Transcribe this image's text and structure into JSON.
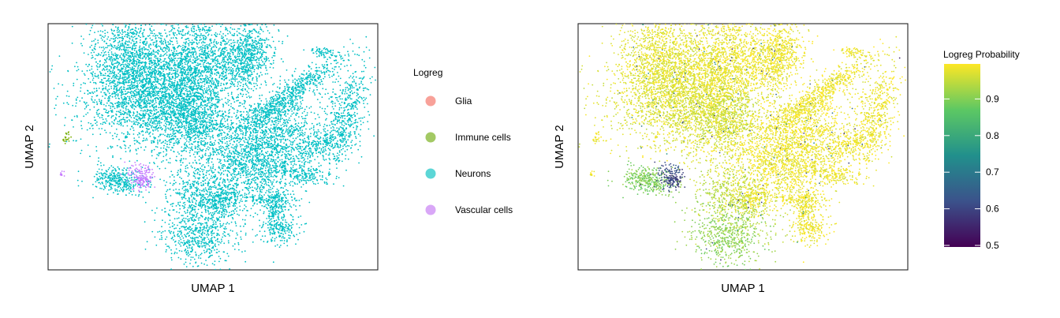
{
  "chart_data": [
    {
      "type": "scatter",
      "xlabel": "UMAP 1",
      "ylabel": "UMAP 2",
      "legend": {
        "title": "Logreg",
        "placement": "right",
        "items": [
          {
            "label": "Glia",
            "color": "#F8A199"
          },
          {
            "label": "Immune cells",
            "color": "#A3C964"
          },
          {
            "label": "Neurons",
            "color": "#5CD6D6"
          },
          {
            "label": "Vascular cells",
            "color": "#D9A7F7"
          }
        ]
      },
      "point_colors": {
        "Glia": "#F8766D",
        "Immune cells": "#7CAE00",
        "Neurons": "#00BFC4",
        "Vascular cells": "#C77CFF"
      },
      "grid": false
    },
    {
      "type": "scatter",
      "xlabel": "UMAP 1",
      "ylabel": "UMAP 2",
      "colorbar": {
        "title": "Logreg Probability",
        "placement": "right",
        "range": [
          0.5,
          1.0
        ],
        "ticks": [
          "0.9",
          "0.8",
          "0.7",
          "0.6",
          "0.5"
        ],
        "tick_values": [
          0.9,
          0.8,
          0.7,
          0.6,
          0.5
        ],
        "colormap": [
          "#440154",
          "#3B528B",
          "#21908C",
          "#5DC863",
          "#FDE725"
        ]
      },
      "grid": false
    }
  ]
}
